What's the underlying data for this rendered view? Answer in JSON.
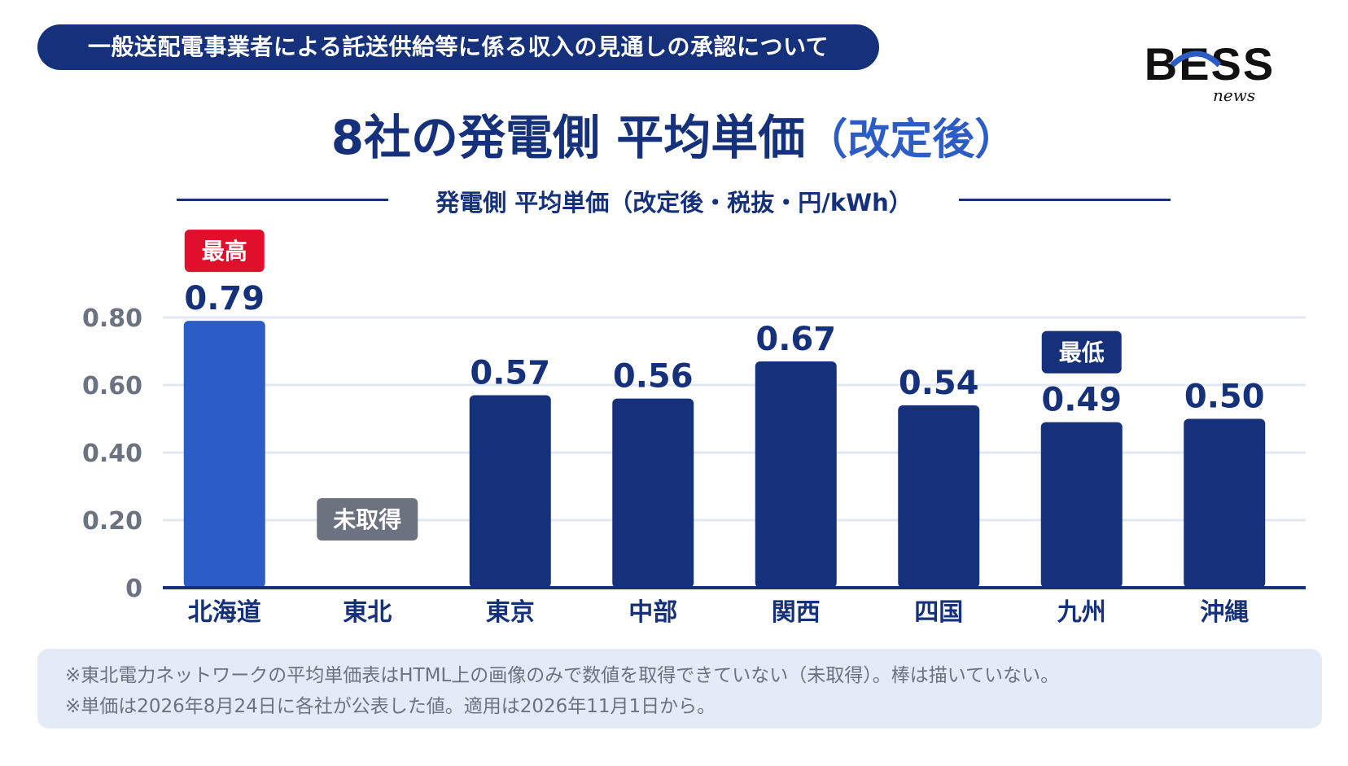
{
  "header": {
    "banner": "一般送配電事業者による託送供給等に係る収入の見通しの承認について",
    "logo_text": "BESS",
    "logo_sub": "news"
  },
  "title": {
    "main": "8社の発電側 平均単価",
    "sub": "（改定後）"
  },
  "chart_data": {
    "type": "bar",
    "title": "発電側 平均単価（改定後・税抜・円/kWh）",
    "categories": [
      "北海道",
      "東北",
      "東京",
      "中部",
      "関西",
      "四国",
      "九州",
      "沖縄"
    ],
    "values": [
      0.79,
      null,
      0.57,
      0.56,
      0.67,
      0.54,
      0.49,
      0.5
    ],
    "value_labels": [
      "0.79",
      "",
      "0.57",
      "0.56",
      "0.67",
      "0.54",
      "0.49",
      "0.50"
    ],
    "ylim": [
      0,
      0.8
    ],
    "yticks": [
      0,
      0.2,
      0.4,
      0.6,
      0.8
    ],
    "ytick_labels": [
      "0",
      "0.20",
      "0.40",
      "0.60",
      "0.80"
    ],
    "grid": true,
    "colors": {
      "bar": "#15317c",
      "highlight_bar": "#2c5cc5",
      "grid": "#e1e8f4",
      "axis": "#15317c"
    },
    "badges": [
      {
        "category": "北海道",
        "text": "最高",
        "color": "#e0102d"
      },
      {
        "category": "東北",
        "text": "未取得",
        "color": "#6b7280"
      },
      {
        "category": "九州",
        "text": "最低",
        "color": "#15317c"
      }
    ]
  },
  "notes": [
    "※東北電力ネットワークの平均単価表はHTML上の画像のみで数値を取得できていない（未取得）。棒は描いていない。",
    "※単価は2026年8月24日に各社が公表した値。適用は2026年11月1日から。"
  ]
}
